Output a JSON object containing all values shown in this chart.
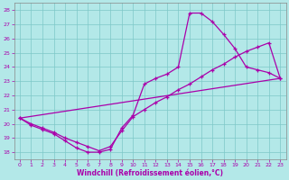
{
  "xlabel": "Windchill (Refroidissement éolien,°C)",
  "bg_color": "#b3e8e8",
  "grid_color": "#7dc8c8",
  "line_color": "#aa00aa",
  "xlim": [
    -0.5,
    23.5
  ],
  "ylim": [
    17.5,
    28.5
  ],
  "xticks": [
    0,
    1,
    2,
    3,
    4,
    5,
    6,
    7,
    8,
    9,
    10,
    11,
    12,
    13,
    14,
    15,
    16,
    17,
    18,
    19,
    20,
    21,
    22,
    23
  ],
  "yticks": [
    18,
    19,
    20,
    21,
    22,
    23,
    24,
    25,
    26,
    27,
    28
  ],
  "curve1_x": [
    0,
    1,
    2,
    3,
    4,
    5,
    6,
    7,
    8,
    9,
    10,
    11,
    12,
    13,
    14,
    15,
    16,
    17,
    18,
    19,
    20,
    21,
    22,
    23
  ],
  "curve1_y": [
    20.4,
    19.9,
    19.6,
    19.3,
    18.8,
    18.3,
    18.0,
    18.0,
    18.2,
    19.7,
    20.6,
    22.8,
    23.2,
    23.5,
    24.0,
    27.8,
    27.8,
    27.2,
    26.3,
    25.3,
    24.0,
    23.8,
    23.6,
    23.2
  ],
  "curve2_x": [
    0,
    1,
    2,
    3,
    4,
    5,
    6,
    7,
    8,
    9,
    10,
    11,
    12,
    13,
    14,
    15,
    16,
    17,
    18,
    19,
    20,
    21,
    22,
    23
  ],
  "curve2_y": [
    20.4,
    20.0,
    19.7,
    19.4,
    19.0,
    18.7,
    18.4,
    18.1,
    18.4,
    19.5,
    20.5,
    21.0,
    21.5,
    21.9,
    22.4,
    22.8,
    23.3,
    23.8,
    24.2,
    24.7,
    25.1,
    25.4,
    25.7,
    23.2
  ],
  "curve3_x": [
    0,
    23
  ],
  "curve3_y": [
    20.4,
    23.2
  ]
}
